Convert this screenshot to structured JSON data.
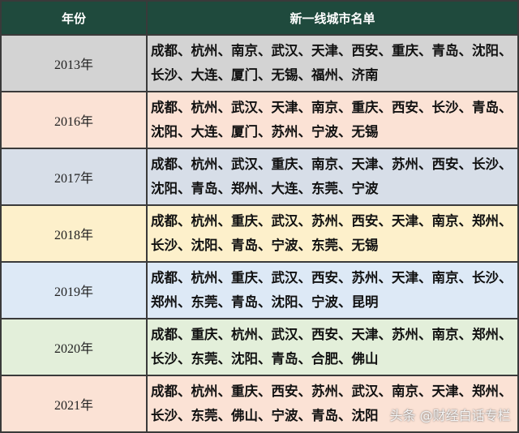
{
  "header": {
    "year": "年份",
    "list": "新一线城市名单"
  },
  "rows": [
    {
      "year": "2013年",
      "cities": "成都、杭州、南京、武汉、天津、西安、重庆、青岛、沈阳、长沙、大连、厦门、无锡、福州、济南",
      "color": "#d3d3d3"
    },
    {
      "year": "2016年",
      "cities": "成都、杭州、武汉、天津、南京、重庆、西安、长沙、青岛、沈阳、大连、厦门、苏州、宁波、无锡",
      "color": "#fbe2d5"
    },
    {
      "year": "2017年",
      "cities": "成都、杭州、武汉、重庆、南京、天津、苏州、西安、长沙、沈阳、青岛、郑州、大连、东莞、宁波",
      "color": "#d7dee8"
    },
    {
      "year": "2018年",
      "cities": "成都、杭州、重庆、武汉、苏州、西安、天津、南京、郑州、长沙、沈阳、青岛、宁波、东莞、无锡",
      "color": "#fdf0cb"
    },
    {
      "year": "2019年",
      "cities": "成都、杭州、重庆、武汉、西安、苏州、天津、南京、长沙、郑州、东莞、青岛、沈阳、宁波、昆明",
      "color": "#dde9f6"
    },
    {
      "year": "2020年",
      "cities": "成都、重庆、杭州、武汉、西安、天津、苏州、南京、郑州、长沙、东莞、沈阳、青岛、合肥、佛山",
      "color": "#e3efda"
    },
    {
      "year": "2021年",
      "cities": "成都、杭州、重庆、西安、苏州、武汉、南京、天津、郑州、长沙、东莞、佛山、宁波、青岛、沈阳",
      "color": "#fbe2d5"
    }
  ],
  "watermark": "头条 @财经白话专栏"
}
